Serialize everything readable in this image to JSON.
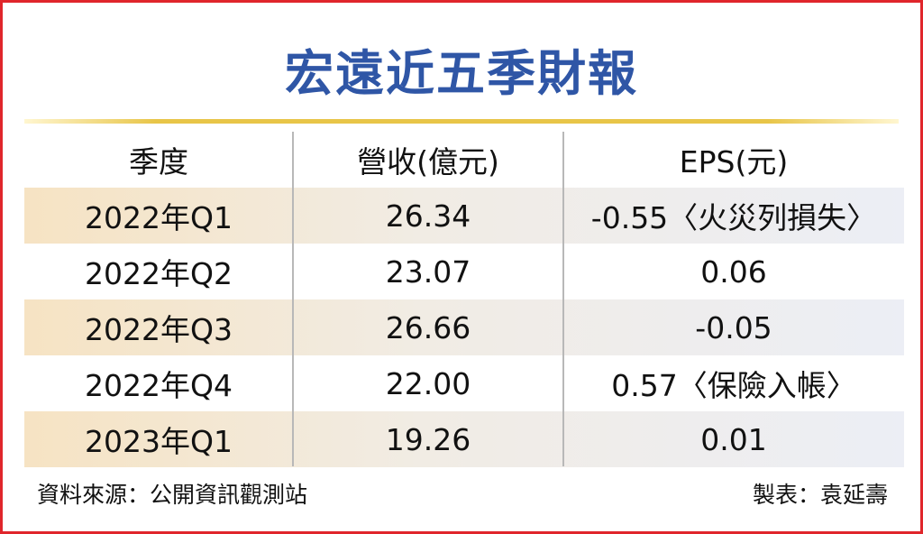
{
  "header": {
    "title": "宏遠近五季財報"
  },
  "table": {
    "columns": [
      "季度",
      "營收(億元)",
      "EPS(元)"
    ],
    "rows": [
      [
        "2022年Q1",
        "26.34",
        "-0.55〈火災列損失〉"
      ],
      [
        "2022年Q2",
        "23.07",
        "0.06"
      ],
      [
        "2022年Q3",
        "26.66",
        "-0.05"
      ],
      [
        "2022年Q4",
        "22.00",
        "0.57〈保險入帳〉"
      ],
      [
        "2023年Q1",
        "19.26",
        "0.01"
      ]
    ]
  },
  "footer": {
    "source": "資料來源：公開資訊觀測站",
    "author": "製表：袁延壽"
  }
}
